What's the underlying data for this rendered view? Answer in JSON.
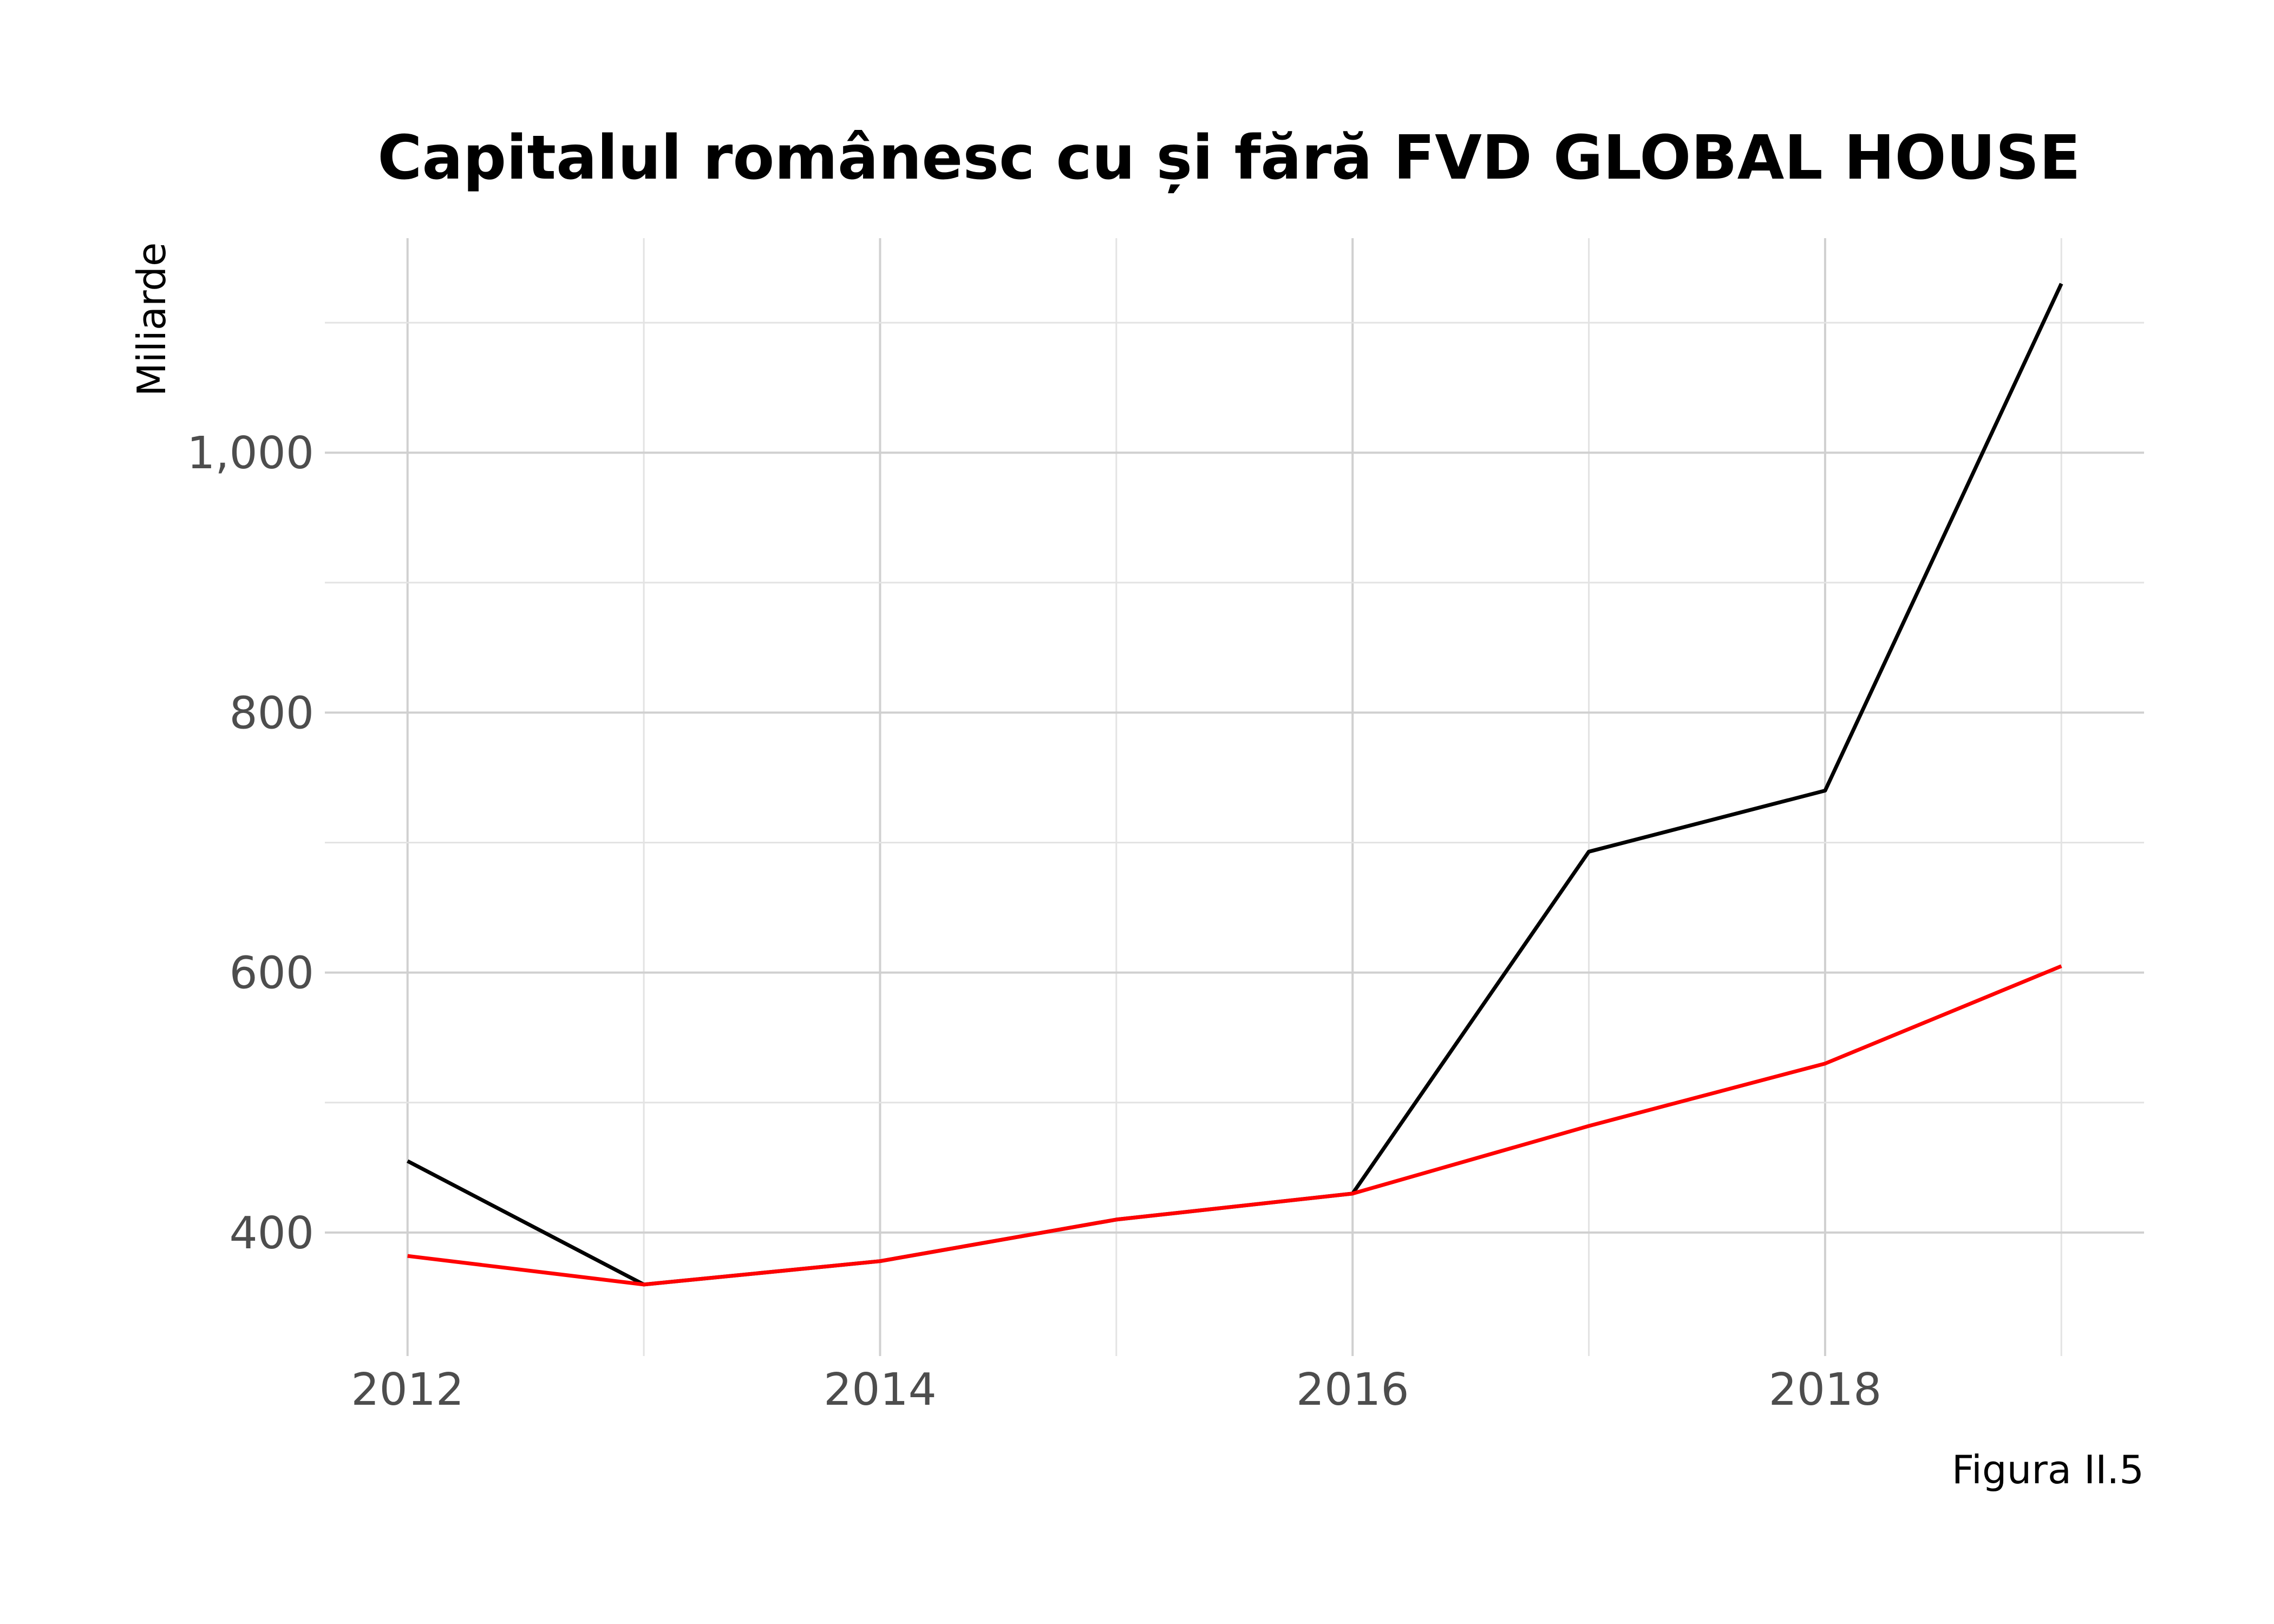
{
  "chart_data": {
    "type": "line",
    "title": "Capitalul românesc cu și fără FVD GLOBAL HOUSE",
    "xlabel": "",
    "ylabel": "Miliarde",
    "caption": "Figura II.5",
    "x": [
      2012,
      2013,
      2014,
      2015,
      2016,
      2017,
      2018,
      2019
    ],
    "x_ticks": [
      2012,
      2014,
      2016,
      2018
    ],
    "x_tick_labels": [
      "2012",
      "2014",
      "2016",
      "2018"
    ],
    "xlim": [
      2011.65,
      2019.35
    ],
    "y_ticks": [
      400,
      600,
      800,
      1000
    ],
    "y_tick_labels": [
      "400",
      "600",
      "800",
      "1,000"
    ],
    "ylim": [
      305,
      1165
    ],
    "grid": true,
    "legend": "none",
    "series": [
      {
        "values": [
          455,
          360,
          378,
          410,
          430,
          693,
          740,
          1130
        ],
        "color": "#000000"
      },
      {
        "values": [
          382,
          360,
          378,
          410,
          430,
          482,
          530,
          605
        ],
        "color": "#ff0000"
      }
    ]
  }
}
